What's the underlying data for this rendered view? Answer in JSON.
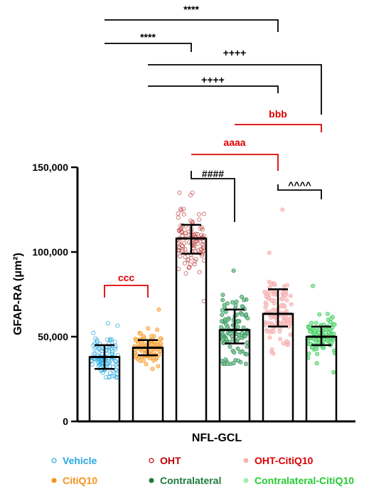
{
  "chart_data": {
    "type": "bar",
    "xlabel": "NFL-GCL",
    "ylabel": "GFAP-RA (μm²)",
    "ylim": [
      0,
      150000
    ],
    "yticks": [
      0,
      50000,
      100000,
      150000
    ],
    "ytick_labels": [
      "0",
      "50,000",
      "100,000",
      "150,000"
    ],
    "grid": false,
    "legend_position": "bottom",
    "groups": [
      {
        "name": "Vehicle",
        "mean": 38000,
        "sd_low": 31000,
        "sd_high": 45000,
        "point_min": 26000,
        "point_max": 58000,
        "n": 110,
        "color": "#29A8E0",
        "marker": "open-circle",
        "fill": "#bfe3f6"
      },
      {
        "name": "CitiQ10",
        "mean": 43500,
        "sd_low": 39000,
        "sd_high": 48000,
        "point_min": 31000,
        "point_max": 66000,
        "n": 110,
        "color": "#F7931E",
        "marker": "filled-circle",
        "fill": "#fbc98a"
      },
      {
        "name": "OHT",
        "mean": 108000,
        "sd_low": 99000,
        "sd_high": 116000,
        "point_min": 71000,
        "point_max": 135000,
        "n": 110,
        "color": "#C0504D",
        "marker": "open-circle",
        "fill": "#f2c2c0"
      },
      {
        "name": "Contralateral",
        "mean": 54000,
        "sd_low": 46000,
        "sd_high": 66000,
        "point_min": 34000,
        "point_max": 89000,
        "n": 110,
        "color": "#2E8B57",
        "marker": "filled-circle",
        "fill": "#7cc596"
      },
      {
        "name": "OHT-CitiQ10",
        "mean": 63500,
        "sd_low": 56000,
        "sd_high": 78000,
        "point_min": 40000,
        "point_max": 125000,
        "n": 110,
        "color": "#F4A6A6",
        "marker": "filled-circle",
        "fill": "#f9c7c7"
      },
      {
        "name": "Contralateral-CitiQ10",
        "mean": 50000,
        "sd_low": 45000,
        "sd_high": 56000,
        "point_min": 29000,
        "point_max": 80000,
        "n": 110,
        "color": "#33CC55",
        "marker": "filled-circle",
        "fill": "#8fe3a0"
      }
    ],
    "annotations": [
      {
        "label": "****",
        "from": 0,
        "to": 4,
        "level": 1,
        "color": "#000000"
      },
      {
        "label": "****",
        "from": 0,
        "to": 2,
        "level": 2,
        "color": "#000000"
      },
      {
        "label": "++++",
        "from": 1,
        "to": 5,
        "level": 3,
        "color": "#000000"
      },
      {
        "label": "++++",
        "from": 1,
        "to": 4,
        "level": 4,
        "color": "#000000"
      },
      {
        "label": "bbb",
        "from": 3,
        "to": 5,
        "level": 5,
        "color": "#E00000"
      },
      {
        "label": "aaaa",
        "from": 2,
        "to": 4,
        "level": 6,
        "color": "#E00000"
      },
      {
        "label": "####",
        "from": 2,
        "to": 3,
        "level": 7,
        "color": "#000000"
      },
      {
        "label": "^^^^",
        "from": 4,
        "to": 5,
        "level": 8,
        "color": "#000000"
      },
      {
        "label": "ccc",
        "from": 0,
        "to": 1,
        "level": 9,
        "color": "#E00000"
      }
    ],
    "legend": [
      {
        "label": "Vehicle",
        "color": "#29A8E0",
        "marker": "open-circle"
      },
      {
        "label": "OHT",
        "color": "#C00000",
        "marker": "open-circle"
      },
      {
        "label": "OHT-CitiQ10",
        "color": "#E00000",
        "marker": "filled-circle-pink"
      },
      {
        "label": "CitiQ10",
        "color": "#F7931E",
        "marker": "filled-circle"
      },
      {
        "label": "Contralateral",
        "color": "#1E7B3C",
        "marker": "filled-circle"
      },
      {
        "label": "Contralateral-CitiQ10",
        "color": "#22CC33",
        "marker": "filled-circle-light"
      }
    ]
  }
}
